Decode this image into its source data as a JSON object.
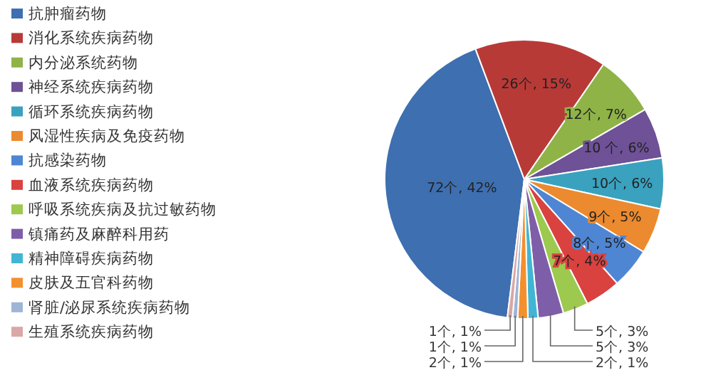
{
  "chart_data": {
    "type": "pie",
    "categories": [
      "抗肿瘤药物",
      "消化系统疾病药物",
      "内分泌系统药物",
      "神经系统疾病药物",
      "循环系统疾病药物",
      "风湿性疾病及免疫药物",
      "抗感染药物",
      "血液系统疾病药物",
      "呼吸系统疾病及抗过敏药物",
      "镇痛药及麻醉科用药",
      "精神障碍疾病药物",
      "皮肤及五官科药物",
      "肾脏/泌尿系统疾病药物",
      "生殖系统疾病药物"
    ],
    "values": [
      72,
      26,
      12,
      10,
      10,
      9,
      8,
      7,
      5,
      5,
      2,
      2,
      1,
      1
    ],
    "colors": [
      "#3e6fb0",
      "#b83a37",
      "#8fb347",
      "#6e5196",
      "#3aa2bf",
      "#ec8a2f",
      "#4f86d4",
      "#d9423f",
      "#9cc94e",
      "#7e5ea8",
      "#43b5d4",
      "#f3902e",
      "#9fb5d6",
      "#d9a7a6"
    ],
    "value_labels": [
      "72个, 42%",
      "26个, 15%",
      "12个, 7%",
      "10 个, 6%",
      "10个, 6%",
      "9个, 5%",
      "8个, 5%",
      "7个, 4%",
      "5个, 3%",
      "5个, 3%",
      "2个, 1%",
      "2个, 1%",
      "1个, 1%",
      "1个, 1%"
    ],
    "legend": "left"
  }
}
